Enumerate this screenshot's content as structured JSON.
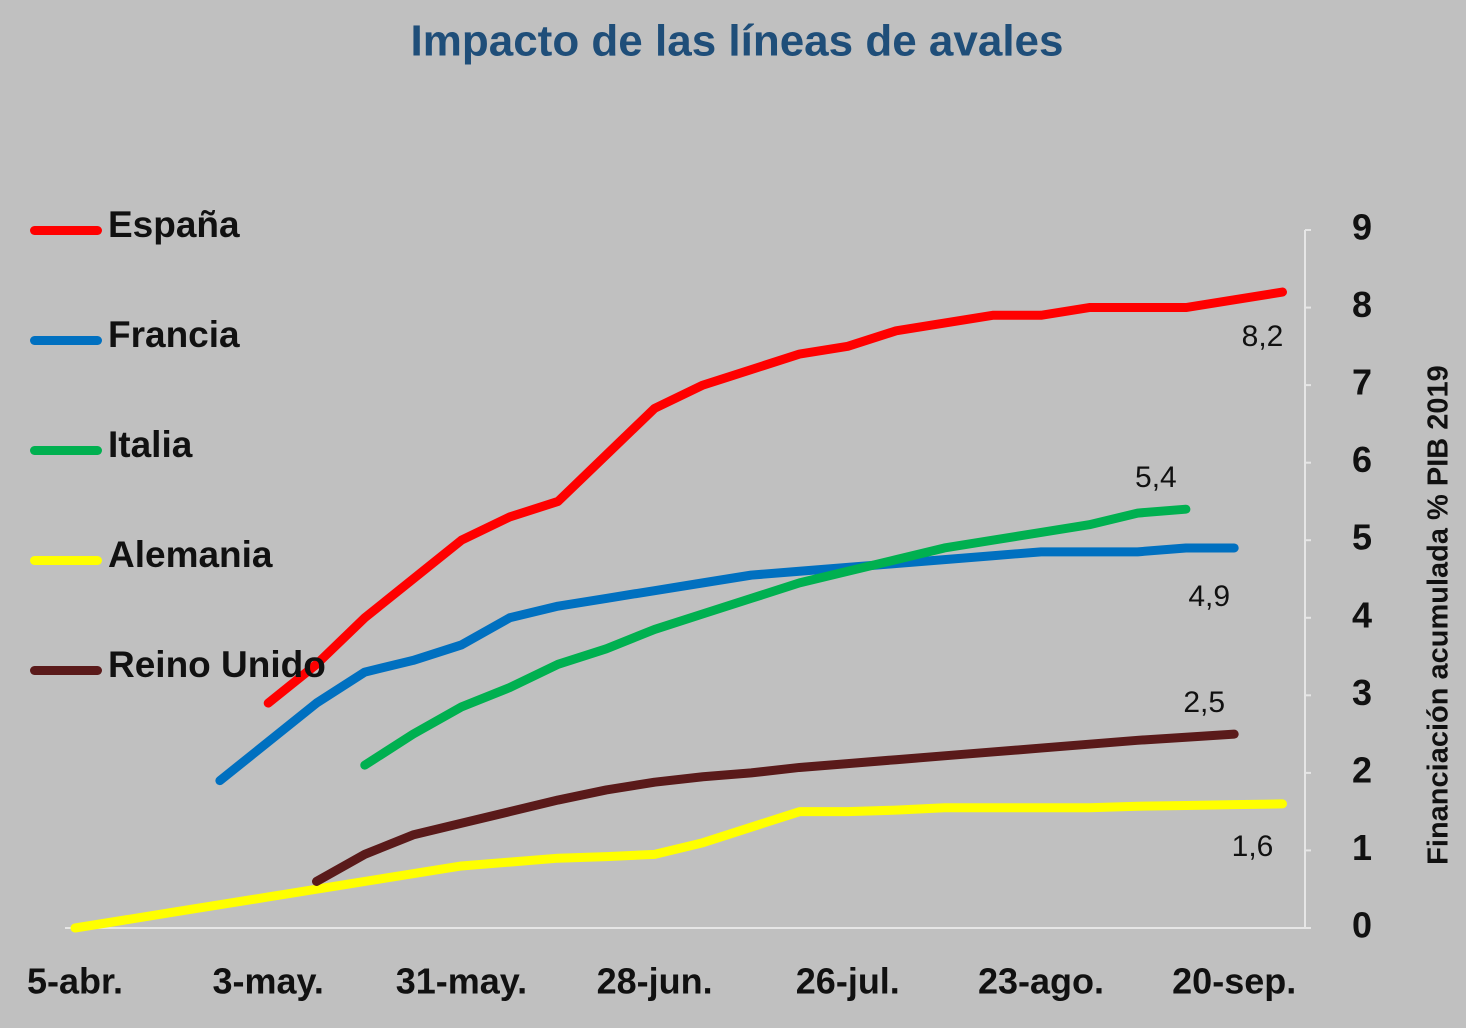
{
  "chart_data": {
    "type": "line",
    "title": "Impacto de las líneas de avales",
    "y_label": "Financiación acumulada % PIB 2019",
    "y_axis_side": "right",
    "grid": false,
    "legend": "left",
    "categories": [
      "5-abr.",
      null,
      null,
      null,
      "3-may.",
      null,
      null,
      null,
      "31-may.",
      null,
      null,
      null,
      "28-jun.",
      null,
      null,
      null,
      "26-jul.",
      null,
      null,
      null,
      "23-ago.",
      null,
      null,
      null,
      "20-sep.",
      null
    ],
    "ylim": [
      0,
      9
    ],
    "yticks": [
      0,
      1,
      2,
      3,
      4,
      5,
      6,
      7,
      8,
      9
    ],
    "series": [
      {
        "name": "España",
        "color": "#ff0000",
        "values": [
          null,
          null,
          null,
          null,
          2.9,
          3.4,
          4.0,
          4.5,
          5.0,
          5.3,
          5.5,
          6.1,
          6.7,
          7.0,
          7.2,
          7.4,
          7.5,
          7.7,
          7.8,
          7.9,
          7.9,
          8.0,
          8.0,
          8.0,
          8.1,
          8.2
        ],
        "value_labels": [
          null,
          null,
          null,
          null,
          null,
          null,
          null,
          null,
          null,
          null,
          null,
          null,
          null,
          null,
          null,
          null,
          null,
          null,
          null,
          null,
          null,
          null,
          null,
          null,
          null,
          "8,2"
        ]
      },
      {
        "name": "Francia",
        "color": "#0070c0",
        "values": [
          null,
          null,
          null,
          1.9,
          2.4,
          2.9,
          3.3,
          3.45,
          3.65,
          4.0,
          4.15,
          4.25,
          4.35,
          4.45,
          4.55,
          4.6,
          4.65,
          4.7,
          4.75,
          4.8,
          4.85,
          4.85,
          4.85,
          4.9,
          4.9,
          null
        ],
        "value_labels": [
          null,
          null,
          null,
          null,
          null,
          null,
          null,
          null,
          null,
          null,
          null,
          null,
          null,
          null,
          null,
          null,
          null,
          null,
          null,
          null,
          null,
          null,
          null,
          null,
          "4,9",
          null
        ]
      },
      {
        "name": "Italia",
        "color": "#00b050",
        "values": [
          null,
          null,
          null,
          null,
          null,
          null,
          2.1,
          2.5,
          2.85,
          3.1,
          3.4,
          3.6,
          3.85,
          4.05,
          4.25,
          4.45,
          4.6,
          4.75,
          4.9,
          5.0,
          5.1,
          5.2,
          5.35,
          5.4,
          null,
          null
        ],
        "value_labels": [
          null,
          null,
          null,
          null,
          null,
          null,
          null,
          null,
          null,
          null,
          null,
          null,
          null,
          null,
          null,
          null,
          null,
          null,
          null,
          null,
          null,
          null,
          null,
          "5,4",
          null,
          null
        ]
      },
      {
        "name": "Alemania",
        "color": "#ffff00",
        "values": [
          0,
          0.1,
          0.2,
          0.3,
          0.4,
          0.5,
          0.6,
          0.7,
          0.8,
          0.85,
          0.9,
          0.92,
          0.95,
          1.1,
          1.3,
          1.5,
          1.5,
          1.52,
          1.55,
          1.55,
          1.55,
          1.55,
          1.57,
          1.58,
          1.59,
          1.6
        ],
        "value_labels": [
          null,
          null,
          null,
          null,
          null,
          null,
          null,
          null,
          null,
          null,
          null,
          null,
          null,
          null,
          null,
          null,
          null,
          null,
          null,
          null,
          null,
          null,
          null,
          null,
          null,
          "1,6"
        ]
      },
      {
        "name": "Reino Unido",
        "color": "#5a1a1a",
        "values": [
          null,
          null,
          null,
          null,
          null,
          0.6,
          0.95,
          1.2,
          1.35,
          1.5,
          1.65,
          1.78,
          1.88,
          1.95,
          2.0,
          2.07,
          2.12,
          2.17,
          2.22,
          2.27,
          2.32,
          2.37,
          2.42,
          2.46,
          2.5,
          null
        ],
        "value_labels": [
          null,
          null,
          null,
          null,
          null,
          null,
          null,
          null,
          null,
          null,
          null,
          null,
          null,
          null,
          null,
          null,
          null,
          null,
          null,
          null,
          null,
          null,
          null,
          null,
          "2,5",
          null
        ]
      }
    ]
  }
}
